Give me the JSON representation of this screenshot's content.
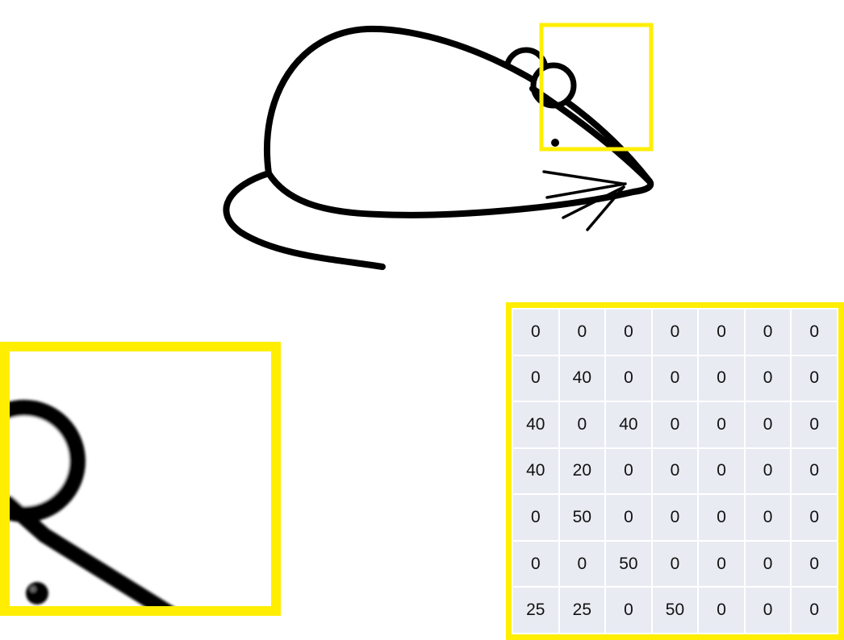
{
  "colors": {
    "highlight": "#ffee00",
    "cell_background": "#e8ebf2",
    "line": "#000000"
  },
  "icons": {
    "mouse": "mouse-drawing-icon",
    "zoom": "zoomed-ear-crop"
  },
  "pixel_matrix": {
    "rows": [
      [
        "0",
        "0",
        "0",
        "0",
        "0",
        "0",
        "0"
      ],
      [
        "0",
        "40",
        "0",
        "0",
        "0",
        "0",
        "0"
      ],
      [
        "40",
        "0",
        "40",
        "0",
        "0",
        "0",
        "0"
      ],
      [
        "40",
        "20",
        "0",
        "0",
        "0",
        "0",
        "0"
      ],
      [
        "0",
        "50",
        "0",
        "0",
        "0",
        "0",
        "0"
      ],
      [
        "0",
        "0",
        "50",
        "0",
        "0",
        "0",
        "0"
      ],
      [
        "25",
        "25",
        "0",
        "50",
        "0",
        "0",
        "0"
      ]
    ]
  }
}
